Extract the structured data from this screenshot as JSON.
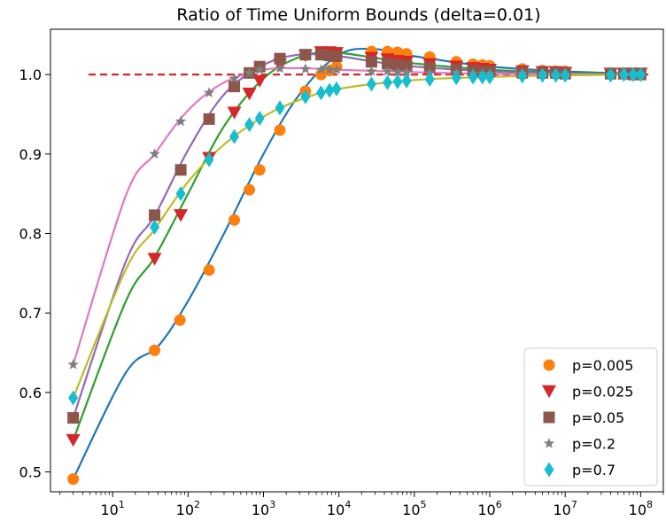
{
  "chart_data": {
    "type": "line",
    "title": "Ratio of Time Uniform Bounds (delta=0.01)",
    "xlabel": "",
    "ylabel": "",
    "x_scale": "log",
    "xlim": [
      1.5,
      200000000
    ],
    "ylim": [
      0.475,
      1.057
    ],
    "x_ticks": [
      10,
      100,
      1000,
      10000,
      100000,
      1000000,
      10000000,
      100000000
    ],
    "x_tick_labels": [
      {
        "base": "10",
        "exp": "1"
      },
      {
        "base": "10",
        "exp": "2"
      },
      {
        "base": "10",
        "exp": "3"
      },
      {
        "base": "10",
        "exp": "4"
      },
      {
        "base": "10",
        "exp": "5"
      },
      {
        "base": "10",
        "exp": "6"
      },
      {
        "base": "10",
        "exp": "7"
      },
      {
        "base": "10",
        "exp": "8"
      }
    ],
    "y_ticks": [
      0.5,
      0.6,
      0.7,
      0.8,
      0.9,
      1.0
    ],
    "y_tick_labels": [
      "0.5",
      "0.6",
      "0.7",
      "0.8",
      "0.9",
      "1.0"
    ],
    "grid": false,
    "legend_position": "bottom-right",
    "reference_line": {
      "y": 1.0,
      "color": "#d62728",
      "style": "dashed"
    },
    "series": [
      {
        "name": "p=0.005",
        "marker": "circle",
        "marker_color": "#ff7f0e",
        "line_color": "#1f77b4",
        "points": [
          [
            3,
            0.491
          ],
          [
            36,
            0.653
          ],
          [
            78,
            0.691
          ],
          [
            190,
            0.754
          ],
          [
            410,
            0.817
          ],
          [
            650,
            0.855
          ],
          [
            890,
            0.88
          ],
          [
            1650,
            0.93
          ],
          [
            3600,
            0.979
          ],
          [
            5800,
            1.0
          ],
          [
            7500,
            1.005
          ],
          [
            9300,
            1.01
          ],
          [
            27000,
            1.029
          ],
          [
            44000,
            1.029
          ],
          [
            60000,
            1.028
          ],
          [
            79000,
            1.026
          ],
          [
            160000,
            1.022
          ],
          [
            360000,
            1.016
          ],
          [
            600000,
            1.013
          ],
          [
            800000,
            1.012
          ],
          [
            1000000,
            1.011
          ],
          [
            2700000,
            1.007
          ],
          [
            5000000,
            1.005
          ],
          [
            7500000,
            1.004
          ],
          [
            10000000,
            1.004
          ],
          [
            40000000,
            1.002
          ],
          [
            60000000,
            1.002
          ],
          [
            80000000,
            1.001
          ],
          [
            100000000,
            1.001
          ]
        ],
        "line": [
          [
            3,
            0.491
          ],
          [
            15,
            0.625
          ],
          [
            40,
            0.658
          ],
          [
            100,
            0.715
          ],
          [
            300,
            0.8
          ],
          [
            1000,
            0.9
          ],
          [
            3000,
            0.975
          ],
          [
            10000,
            1.025
          ],
          [
            30000,
            1.032
          ],
          [
            100000,
            1.023
          ],
          [
            1000000,
            1.01
          ],
          [
            10000000,
            1.004
          ],
          [
            100000000,
            1.001
          ]
        ]
      },
      {
        "name": "p=0.025",
        "marker": "triangle-down",
        "marker_color": "#d62728",
        "line_color": "#2ca02c",
        "points": [
          [
            3,
            0.54
          ],
          [
            36,
            0.768
          ],
          [
            80,
            0.823
          ],
          [
            190,
            0.895
          ],
          [
            410,
            0.952
          ],
          [
            650,
            0.976
          ],
          [
            890,
            0.992
          ],
          [
            1650,
            1.012
          ],
          [
            3600,
            1.024
          ],
          [
            5800,
            1.028
          ],
          [
            7500,
            1.028
          ],
          [
            9300,
            1.027
          ],
          [
            27000,
            1.021
          ],
          [
            44000,
            1.019
          ],
          [
            60000,
            1.017
          ],
          [
            79000,
            1.016
          ],
          [
            160000,
            1.013
          ],
          [
            360000,
            1.01
          ],
          [
            600000,
            1.008
          ],
          [
            800000,
            1.007
          ],
          [
            1000000,
            1.006
          ],
          [
            2700000,
            1.004
          ],
          [
            5000000,
            1.003
          ],
          [
            7500000,
            1.003
          ],
          [
            10000000,
            1.002
          ],
          [
            40000000,
            1.001
          ],
          [
            60000000,
            1.001
          ],
          [
            80000000,
            1.001
          ],
          [
            100000000,
            1.001
          ]
        ],
        "line": [
          [
            3,
            0.54
          ],
          [
            15,
            0.715
          ],
          [
            36,
            0.77
          ],
          [
            100,
            0.85
          ],
          [
            300,
            0.935
          ],
          [
            1000,
            0.995
          ],
          [
            3000,
            1.022
          ],
          [
            8000,
            1.028
          ],
          [
            30000,
            1.021
          ],
          [
            100000,
            1.014
          ],
          [
            1000000,
            1.006
          ],
          [
            10000000,
            1.002
          ],
          [
            100000000,
            1.001
          ]
        ]
      },
      {
        "name": "p=0.05",
        "marker": "square",
        "marker_color": "#8c564b",
        "line_color": "#9467bd",
        "points": [
          [
            3,
            0.568
          ],
          [
            36,
            0.823
          ],
          [
            80,
            0.88
          ],
          [
            190,
            0.944
          ],
          [
            410,
            0.985
          ],
          [
            650,
            1.002
          ],
          [
            890,
            1.01
          ],
          [
            1650,
            1.02
          ],
          [
            3600,
            1.025
          ],
          [
            5800,
            1.025
          ],
          [
            7500,
            1.024
          ],
          [
            9300,
            1.023
          ],
          [
            27000,
            1.016
          ],
          [
            44000,
            1.014
          ],
          [
            60000,
            1.012
          ],
          [
            79000,
            1.011
          ],
          [
            160000,
            1.009
          ],
          [
            360000,
            1.006
          ],
          [
            600000,
            1.005
          ],
          [
            800000,
            1.004
          ],
          [
            1000000,
            1.004
          ],
          [
            2700000,
            1.002
          ],
          [
            5000000,
            1.002
          ],
          [
            7500000,
            1.002
          ],
          [
            10000000,
            1.001
          ],
          [
            40000000,
            1.001
          ],
          [
            60000000,
            1.001
          ],
          [
            80000000,
            1.0
          ],
          [
            100000000,
            1.0
          ]
        ],
        "line": [
          [
            3,
            0.568
          ],
          [
            15,
            0.765
          ],
          [
            36,
            0.822
          ],
          [
            100,
            0.905
          ],
          [
            300,
            0.975
          ],
          [
            1000,
            1.012
          ],
          [
            3000,
            1.025
          ],
          [
            10000,
            1.023
          ],
          [
            30000,
            1.016
          ],
          [
            100000,
            1.01
          ],
          [
            1000000,
            1.004
          ],
          [
            10000000,
            1.001
          ],
          [
            100000000,
            1.0
          ]
        ]
      },
      {
        "name": "p=0.2",
        "marker": "star",
        "marker_color": "#7f7f7f",
        "line_color": "#e377c2",
        "points": [
          [
            3,
            0.635
          ],
          [
            36,
            0.9
          ],
          [
            80,
            0.941
          ],
          [
            190,
            0.977
          ],
          [
            410,
            0.995
          ],
          [
            650,
            1.002
          ],
          [
            890,
            1.006
          ],
          [
            1650,
            1.008
          ],
          [
            3600,
            1.007
          ],
          [
            5800,
            1.006
          ],
          [
            7500,
            1.006
          ],
          [
            9300,
            1.006
          ],
          [
            27000,
            1.004
          ],
          [
            44000,
            1.004
          ],
          [
            60000,
            1.003
          ],
          [
            79000,
            1.003
          ],
          [
            160000,
            1.002
          ],
          [
            360000,
            1.002
          ],
          [
            600000,
            1.001
          ],
          [
            800000,
            1.001
          ],
          [
            1000000,
            1.001
          ],
          [
            2700000,
            1.001
          ],
          [
            5000000,
            1.001
          ],
          [
            7500000,
            1.0
          ],
          [
            10000000,
            1.0
          ],
          [
            40000000,
            1.0
          ],
          [
            60000000,
            1.0
          ],
          [
            80000000,
            1.0
          ],
          [
            100000000,
            1.0
          ]
        ],
        "line": [
          [
            3,
            0.635
          ],
          [
            15,
            0.848
          ],
          [
            36,
            0.9
          ],
          [
            100,
            0.955
          ],
          [
            300,
            0.99
          ],
          [
            1000,
            1.006
          ],
          [
            3000,
            1.008
          ],
          [
            10000,
            1.006
          ],
          [
            100000,
            1.003
          ],
          [
            1000000,
            1.001
          ],
          [
            100000000,
            1.0
          ]
        ]
      },
      {
        "name": "p=0.7",
        "marker": "diamond",
        "marker_color": "#17becf",
        "line_color": "#bcbd22",
        "points": [
          [
            3,
            0.593
          ],
          [
            36,
            0.808
          ],
          [
            80,
            0.85
          ],
          [
            190,
            0.893
          ],
          [
            410,
            0.922
          ],
          [
            650,
            0.937
          ],
          [
            890,
            0.945
          ],
          [
            1650,
            0.958
          ],
          [
            3600,
            0.972
          ],
          [
            5800,
            0.977
          ],
          [
            7500,
            0.98
          ],
          [
            9300,
            0.982
          ],
          [
            27000,
            0.988
          ],
          [
            44000,
            0.99
          ],
          [
            60000,
            0.991
          ],
          [
            79000,
            0.992
          ],
          [
            160000,
            0.994
          ],
          [
            360000,
            0.996
          ],
          [
            600000,
            0.997
          ],
          [
            800000,
            0.997
          ],
          [
            1000000,
            0.997
          ],
          [
            2700000,
            0.998
          ],
          [
            5000000,
            0.999
          ],
          [
            7500000,
            0.999
          ],
          [
            10000000,
            0.999
          ],
          [
            40000000,
            0.999
          ],
          [
            60000000,
            1.0
          ],
          [
            80000000,
            1.0
          ],
          [
            100000000,
            1.0
          ]
        ],
        "line": [
          [
            3,
            0.593
          ],
          [
            15,
            0.755
          ],
          [
            36,
            0.805
          ],
          [
            100,
            0.865
          ],
          [
            300,
            0.912
          ],
          [
            1000,
            0.947
          ],
          [
            3000,
            0.968
          ],
          [
            10000,
            0.982
          ],
          [
            100000,
            0.993
          ],
          [
            1000000,
            0.997
          ],
          [
            10000000,
            0.999
          ],
          [
            100000000,
            1.0
          ]
        ]
      }
    ]
  }
}
